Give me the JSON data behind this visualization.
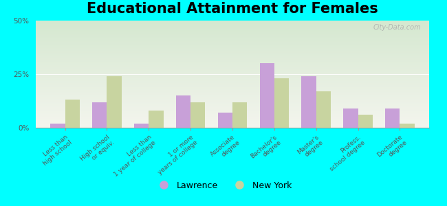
{
  "title": "Educational Attainment for Females",
  "categories": [
    "Less than\nhigh school",
    "High school\nor equiv.",
    "Less than\n1 year of college",
    "1 or more\nyears of college",
    "Associate\ndegree",
    "Bachelor's\ndegree",
    "Master's\ndegree",
    "Profess.\nschool degree",
    "Doctorate\ndegree"
  ],
  "lawrence_values": [
    2.0,
    12.0,
    2.0,
    15.0,
    7.0,
    30.0,
    24.0,
    9.0,
    9.0
  ],
  "newyork_values": [
    13.0,
    24.0,
    8.0,
    12.0,
    12.0,
    23.0,
    17.0,
    6.0,
    2.0
  ],
  "lawrence_color": "#c8a0d8",
  "newyork_color": "#c8d4a0",
  "background_color": "#00ffff",
  "ylim": [
    0,
    50
  ],
  "yticks": [
    0,
    25,
    50
  ],
  "ytick_labels": [
    "0%",
    "25%",
    "50%"
  ],
  "legend_lawrence": "Lawrence",
  "legend_newyork": "New York",
  "title_fontsize": 15,
  "tick_fontsize": 6.5,
  "bar_width": 0.35,
  "watermark": "City-Data.com"
}
